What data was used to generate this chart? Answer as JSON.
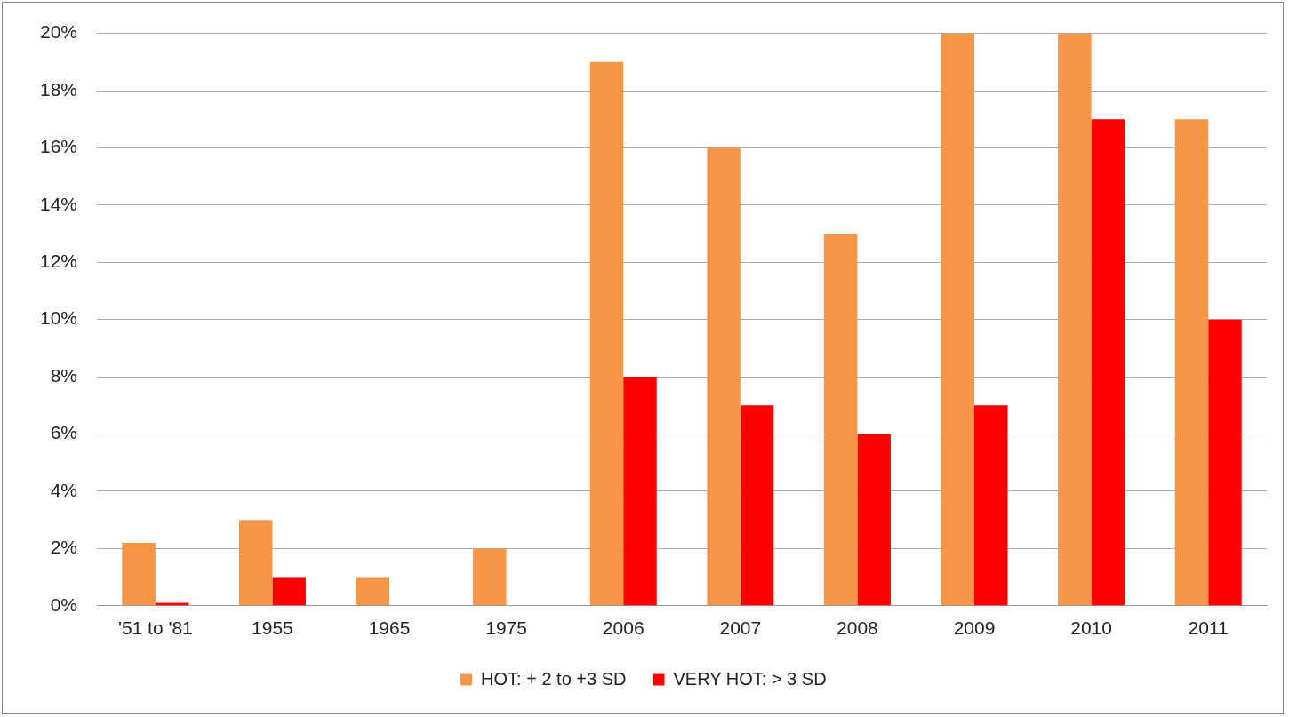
{
  "chart_data": {
    "type": "bar",
    "categories": [
      "'51 to '81",
      "1955",
      "1965",
      "1975",
      "2006",
      "2007",
      "2008",
      "2009",
      "2010",
      "2011"
    ],
    "series": [
      {
        "name": "HOT: + 2 to +3 SD",
        "color": "#f79646",
        "values": [
          2.2,
          3,
          1,
          2,
          19,
          16,
          13,
          20,
          20,
          17
        ]
      },
      {
        "name": "VERY HOT: > 3 SD",
        "color": "#ff0000",
        "values": [
          0.1,
          1,
          0,
          0,
          8,
          7,
          6,
          7,
          17,
          10
        ]
      }
    ],
    "ylim": [
      0,
      20
    ],
    "yticks": [
      {
        "value": 0,
        "label": "0%"
      },
      {
        "value": 2,
        "label": "2%"
      },
      {
        "value": 4,
        "label": "4%"
      },
      {
        "value": 6,
        "label": "6%"
      },
      {
        "value": 8,
        "label": "8%"
      },
      {
        "value": 10,
        "label": "10%"
      },
      {
        "value": 12,
        "label": "12%"
      },
      {
        "value": 14,
        "label": "14%"
      },
      {
        "value": 16,
        "label": "16%"
      },
      {
        "value": 18,
        "label": "18%"
      },
      {
        "value": 20,
        "label": "20%"
      }
    ],
    "grid": "y",
    "legend": "bottom"
  }
}
